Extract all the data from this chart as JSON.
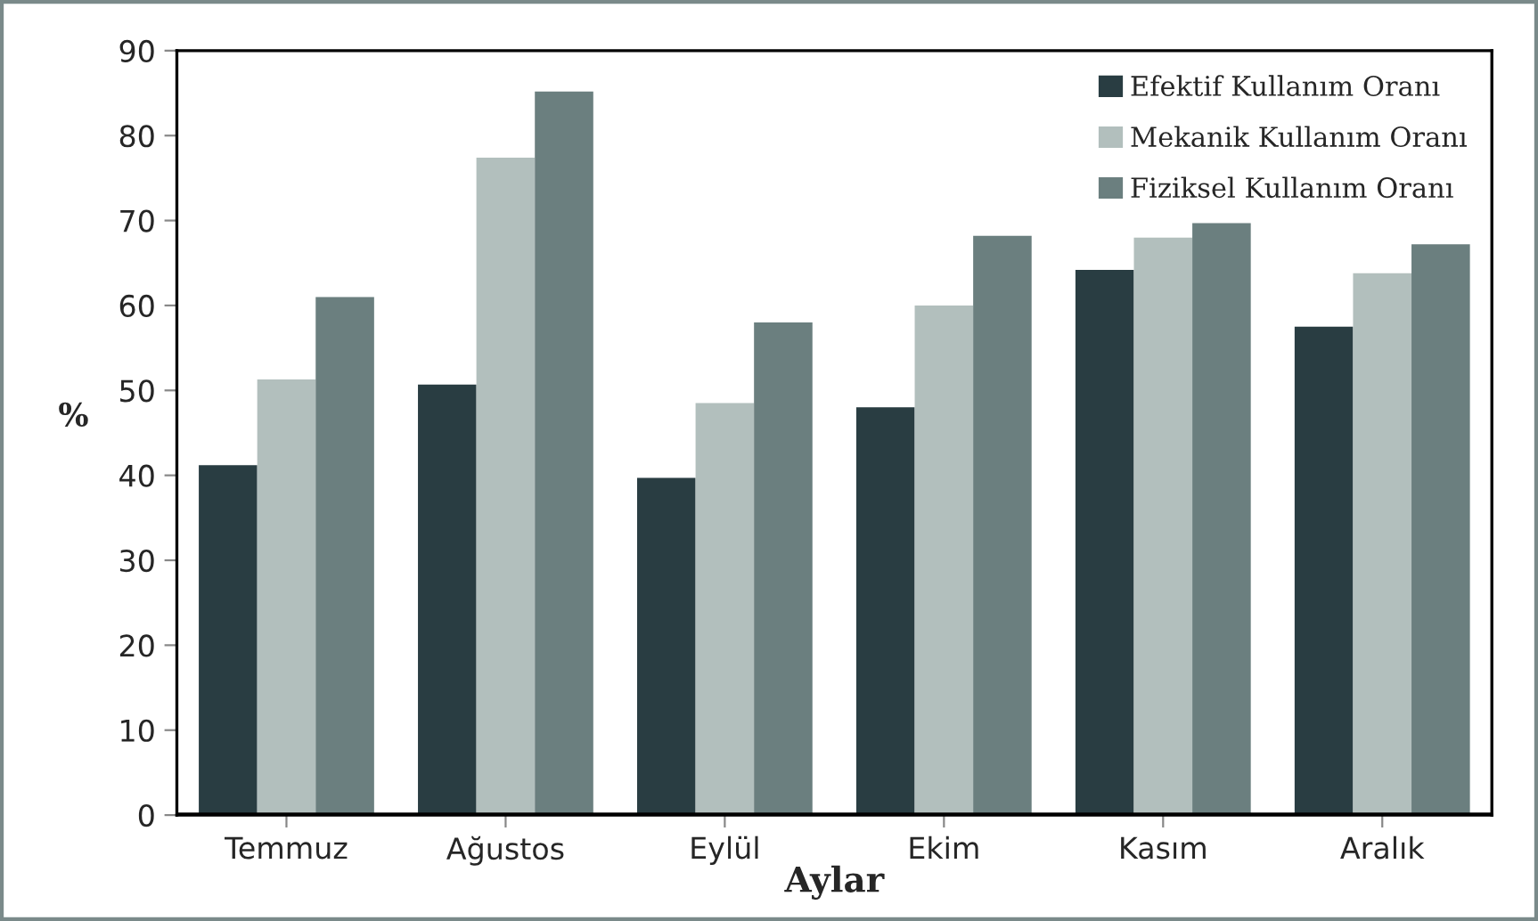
{
  "chart_data": {
    "type": "bar",
    "xlabel": "Aylar",
    "ylabel": "%",
    "categories": [
      "Temmuz",
      "Ağustos",
      "Eylül",
      "Ekim",
      "Kasım",
      "Aralık"
    ],
    "series": [
      {
        "name": "Efektif Kullanım Oranı",
        "color": "#293d42",
        "values": [
          41.2,
          50.7,
          39.7,
          48,
          64.2,
          57.5
        ]
      },
      {
        "name": "Mekanik Kullanım Oranı",
        "color": "#b2bfbd",
        "values": [
          51.3,
          77.4,
          48.5,
          60,
          68,
          63.8
        ]
      },
      {
        "name": "Fiziksel Kullanım Oranı",
        "color": "#6b7f7f",
        "values": [
          61,
          85.2,
          58,
          68.2,
          69.7,
          67.2
        ]
      }
    ],
    "ylim": [
      0,
      90
    ],
    "yticks": [
      0,
      10,
      20,
      30,
      40,
      50,
      60,
      70,
      80,
      90
    ],
    "grid": false,
    "legend": "top right"
  }
}
